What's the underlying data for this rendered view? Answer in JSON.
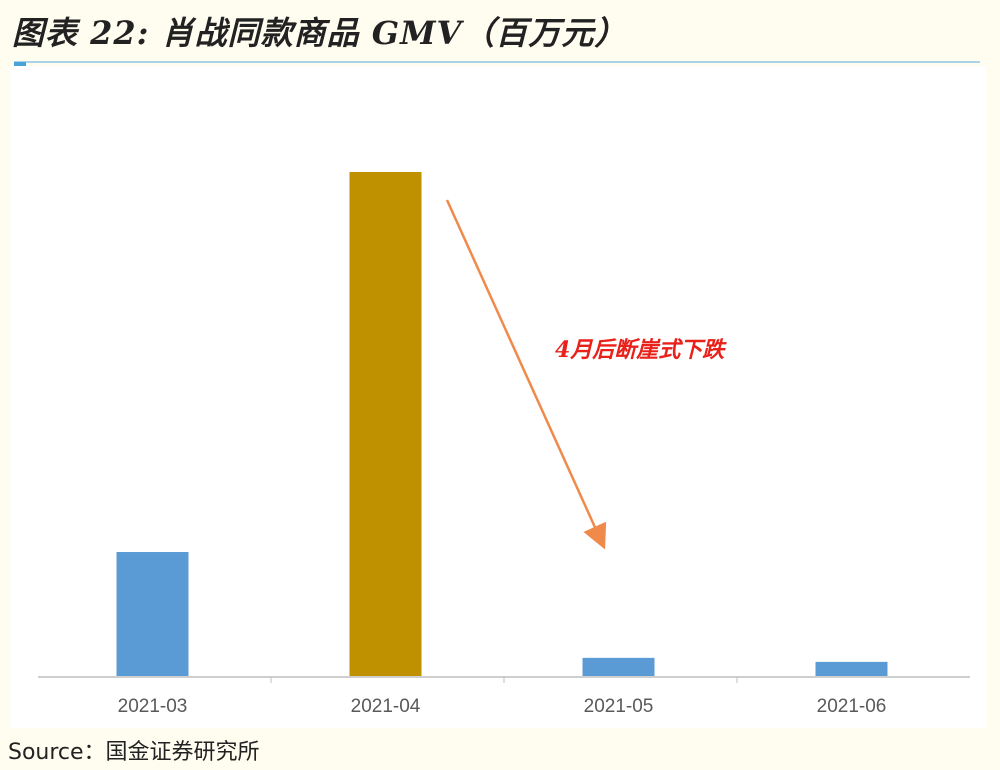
{
  "title": "图表 22: 肖战同款商品 GMV（百万元）",
  "source": "Source：国金证券研究所",
  "chart_data": {
    "type": "bar",
    "title": "图表 22: 肖战同款商品 GMV（百万元）",
    "categories": [
      "2021-03",
      "2021-04",
      "2021-05",
      "2021-06"
    ],
    "values": [
      24.6,
      100,
      3.6,
      2.8
    ],
    "colors": [
      "#5b9bd5",
      "#bf9000",
      "#5b9bd5",
      "#5b9bd5"
    ],
    "ylim": [
      0,
      100
    ],
    "grid": false,
    "legend": "none",
    "annotation": {
      "text": "4月后断崖式下跌",
      "color": "#e8221b",
      "arrow_color": "#f08a4b"
    }
  }
}
